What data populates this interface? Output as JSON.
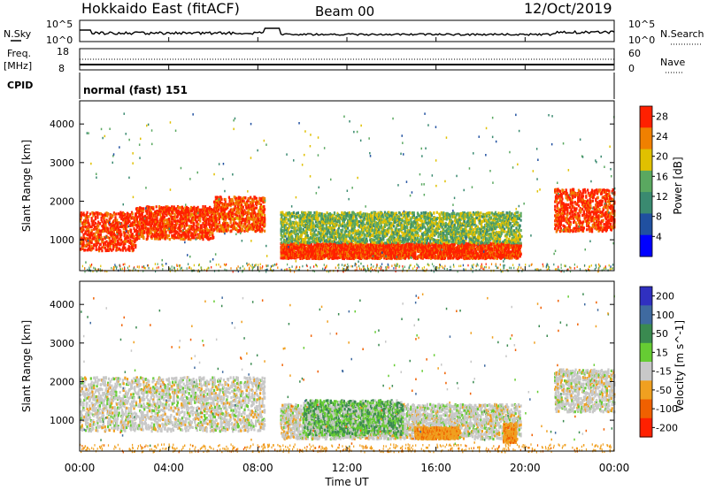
{
  "header": {
    "site": "Hokkaido East (fitACF)",
    "beam": "Beam 00",
    "date": "12/Oct/2019"
  },
  "noise_panel": {
    "left_label": "N.Sky",
    "right_label": "N.Search",
    "left_ticks": [
      "10^5",
      "10^0"
    ],
    "right_ticks": [
      "10^5",
      "10^0"
    ]
  },
  "freq_panel": {
    "left_label_1": "Freq.",
    "left_label_2": "[MHz]",
    "right_label": "Nave",
    "left_ticks": [
      "18",
      "8"
    ],
    "right_ticks": [
      "60",
      "0"
    ]
  },
  "cpid_panel": {
    "label": "CPID",
    "mode": "normal (fast) 151"
  },
  "power_panel": {
    "ylabel": "Slant Range [km]",
    "yticks": [
      "1000",
      "2000",
      "3000",
      "4000"
    ],
    "colorbar_label": "Power [dB]",
    "colorbar_ticks": [
      "4",
      "8",
      "12",
      "16",
      "20",
      "24",
      "28"
    ],
    "colors": [
      "#0000ff",
      "#2050a0",
      "#3a8a70",
      "#5aa860",
      "#e0c000",
      "#f08000",
      "#ff2000"
    ]
  },
  "velocity_panel": {
    "ylabel": "Slant Range [km]",
    "yticks": [
      "1000",
      "2000",
      "3000",
      "4000"
    ],
    "colorbar_label": "Velocity [m s^-1]",
    "colorbar_ticks": [
      "200",
      "100",
      "50",
      "15",
      "-15",
      "-50",
      "-100",
      "-200"
    ],
    "colors": [
      "#3030c0",
      "#3f6aa0",
      "#3a8a50",
      "#66cc33",
      "#c8c8c8",
      "#f0a020",
      "#f06000",
      "#ff2000"
    ]
  },
  "xaxis": {
    "label": "Time UT",
    "ticks": [
      "00:00",
      "04:00",
      "08:00",
      "12:00",
      "16:00",
      "20:00",
      "00:00"
    ]
  },
  "chart_data": [
    {
      "type": "heatmap",
      "title": "Power",
      "xlabel": "Time UT",
      "ylabel": "Slant Range [km]",
      "xlim": [
        0,
        24
      ],
      "ylim": [
        200,
        4600
      ],
      "clim": [
        0,
        30
      ],
      "features": [
        {
          "t_start": 0.0,
          "t_end": 2.5,
          "r_start": 700,
          "r_end": 1700,
          "power_db": 28
        },
        {
          "t_start": 2.5,
          "t_end": 6.0,
          "r_start": 1000,
          "r_end": 1850,
          "power_db": 28
        },
        {
          "t_start": 6.0,
          "t_end": 8.3,
          "r_start": 1200,
          "r_end": 2100,
          "power_db": 26
        },
        {
          "t_start": 9.0,
          "t_end": 19.8,
          "r_start": 500,
          "r_end": 900,
          "power_db": 28
        },
        {
          "t_start": 9.0,
          "t_end": 19.8,
          "r_start": 900,
          "r_end": 1700,
          "power_db": 16
        },
        {
          "t_start": 21.3,
          "t_end": 24.0,
          "r_start": 1200,
          "r_end": 2300,
          "power_db": 28
        }
      ]
    },
    {
      "type": "heatmap",
      "title": "Velocity",
      "xlabel": "Time UT",
      "ylabel": "Slant Range [km]",
      "xlim": [
        0,
        24
      ],
      "ylim": [
        200,
        4600
      ],
      "clim": [
        -200,
        200
      ],
      "features": [
        {
          "t_start": 0.0,
          "t_end": 8.3,
          "r_start": 700,
          "r_end": 2100,
          "velocity": 0
        },
        {
          "t_start": 9.0,
          "t_end": 19.8,
          "r_start": 500,
          "r_end": 1400,
          "velocity": 0
        },
        {
          "t_start": 10.0,
          "t_end": 14.5,
          "r_start": 600,
          "r_end": 1500,
          "velocity": 25
        },
        {
          "t_start": 15.0,
          "t_end": 17.0,
          "r_start": 500,
          "r_end": 800,
          "velocity": -40
        },
        {
          "t_start": 19.0,
          "t_end": 19.6,
          "r_start": 400,
          "r_end": 900,
          "velocity": -40
        },
        {
          "t_start": 21.3,
          "t_end": 24.0,
          "r_start": 1200,
          "r_end": 2300,
          "velocity": 0
        }
      ]
    }
  ]
}
